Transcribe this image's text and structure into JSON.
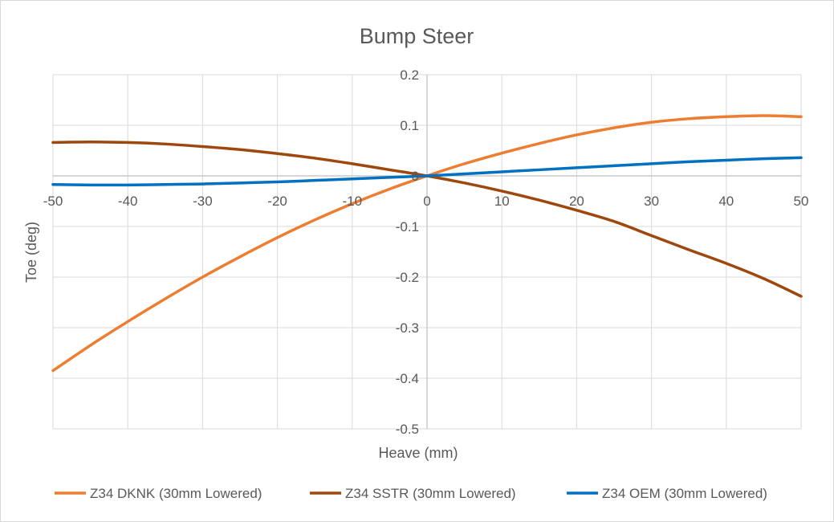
{
  "chart_data": {
    "type": "line",
    "title": "Bump Steer",
    "xlabel": "Heave (mm)",
    "ylabel": "Toe (deg)",
    "xlim": [
      -50,
      50
    ],
    "ylim": [
      -0.5,
      0.2
    ],
    "x_ticks": [
      -50,
      -40,
      -30,
      -20,
      -10,
      0,
      10,
      20,
      30,
      40,
      50
    ],
    "y_ticks": [
      0.2,
      0.1,
      0,
      -0.1,
      -0.2,
      -0.3,
      -0.4,
      -0.5
    ],
    "x_tick_labels": [
      "-50",
      "-40",
      "-30",
      "-20",
      "-10",
      "0",
      "10",
      "20",
      "30",
      "40",
      "50"
    ],
    "y_tick_labels": [
      "0.2",
      "0.1",
      "0",
      "-0.1",
      "-0.2",
      "-0.3",
      "-0.4",
      "-0.5"
    ],
    "grid": true,
    "legend_position": "bottom",
    "x": [
      -50,
      -45,
      -40,
      -35,
      -30,
      -25,
      -20,
      -15,
      -10,
      -5,
      0,
      5,
      10,
      15,
      20,
      25,
      30,
      35,
      40,
      45,
      50
    ],
    "series": [
      {
        "name": "Z34 DKNK (30mm Lowered)",
        "color": "#ED7D31",
        "values": [
          -0.385,
          -0.335,
          -0.288,
          -0.243,
          -0.2,
          -0.16,
          -0.122,
          -0.087,
          -0.055,
          -0.026,
          0.0,
          0.024,
          0.045,
          0.064,
          0.081,
          0.095,
          0.106,
          0.113,
          0.117,
          0.119,
          0.117
        ]
      },
      {
        "name": "Z34 SSTR (30mm Lowered)",
        "color": "#9E480E",
        "values": [
          0.066,
          0.067,
          0.066,
          0.063,
          0.058,
          0.052,
          0.044,
          0.035,
          0.024,
          0.012,
          0.0,
          -0.014,
          -0.03,
          -0.048,
          -0.068,
          -0.09,
          -0.118,
          -0.146,
          -0.173,
          -0.203,
          -0.238
        ]
      },
      {
        "name": "Z34 OEM (30mm Lowered)",
        "color": "#0070C0",
        "values": [
          -0.017,
          -0.018,
          -0.018,
          -0.017,
          -0.016,
          -0.014,
          -0.012,
          -0.009,
          -0.006,
          -0.003,
          0.0,
          0.004,
          0.008,
          0.012,
          0.016,
          0.02,
          0.024,
          0.028,
          0.031,
          0.034,
          0.036
        ]
      }
    ]
  }
}
